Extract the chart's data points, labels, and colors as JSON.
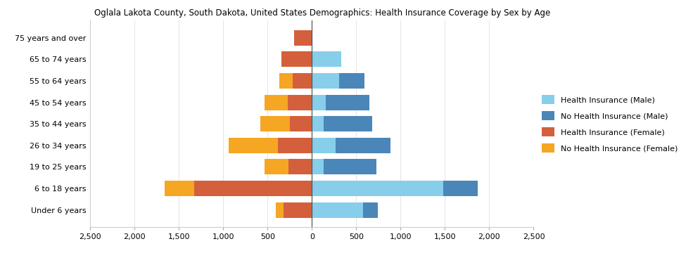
{
  "title": "Oglala Lakota County, South Dakota, United States Demographics: Health Insurance Coverage by Sex by Age",
  "age_groups": [
    "Under 6 years",
    "6 to 18 years",
    "19 to 25 years",
    "26 to 34 years",
    "35 to 44 years",
    "45 to 54 years",
    "55 to 64 years",
    "65 to 74 years",
    "75 years and over"
  ],
  "male_insured": [
    580,
    1480,
    130,
    270,
    130,
    160,
    310,
    330,
    0
  ],
  "male_uninsured": [
    160,
    390,
    600,
    620,
    550,
    490,
    280,
    0,
    0
  ],
  "female_insured": [
    320,
    1330,
    260,
    380,
    250,
    270,
    220,
    340,
    200
  ],
  "female_uninsured": [
    90,
    330,
    270,
    560,
    330,
    260,
    150,
    0,
    0
  ],
  "color_male_insured": "#87CEEB",
  "color_male_uninsured": "#4A86B8",
  "color_female_insured": "#D45F3C",
  "color_female_uninsured": "#F5A623",
  "xlim": 2500,
  "legend_labels": [
    "Health Insurance (Male)",
    "No Health Insurance (Male)",
    "Health Insurance (Female)",
    "No Health Insurance (Female)"
  ],
  "background_color": "#ffffff"
}
